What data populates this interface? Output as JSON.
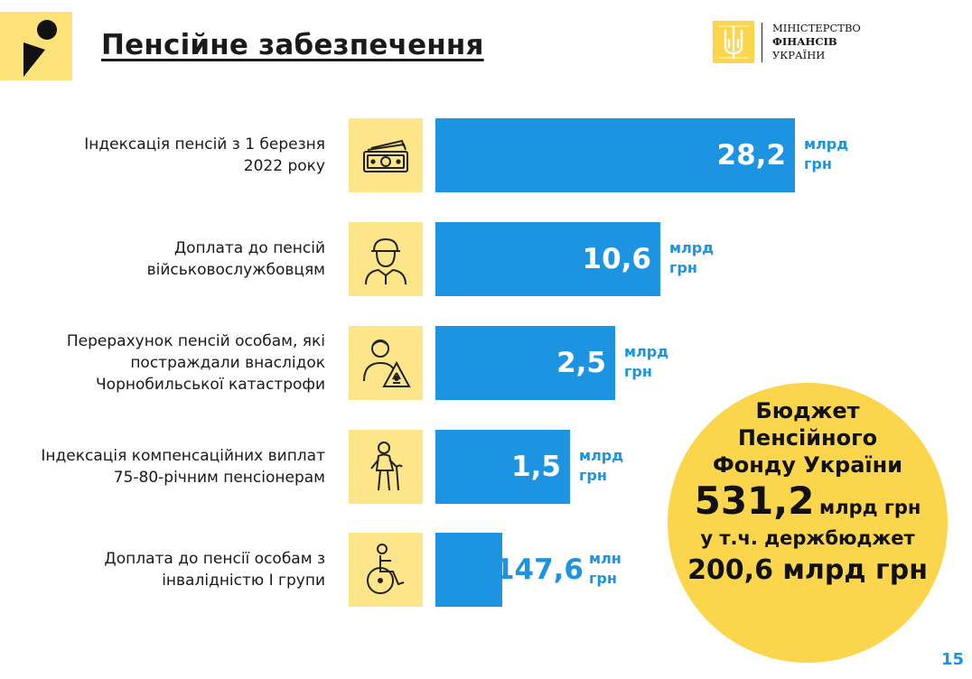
{
  "header": {
    "title": "Пенсійне забезпечення",
    "ministry_line1": "МІНІСТЕРСТВО",
    "ministry_line2": "ФІНАНСІВ",
    "ministry_line3": "УКРАЇНИ"
  },
  "chart_data": {
    "type": "bar",
    "orientation": "horizontal",
    "title": "",
    "categories": [
      "Індексація пенсій з 1 березня 2022 року",
      "Доплата до пенсій військовослужбовцям",
      "Перерахунок пенсій особам, які постраждали внаслідок Чорнобильської катастрофи",
      "Індексація компенсаційних виплат 75-80-річним пенсіонерам",
      "Доплата до пенсії особам з інвалідністю І групи"
    ],
    "items": [
      {
        "label_lines": [
          "Індексація пенсій з 1 березня",
          "2022 року"
        ],
        "value": 28.2,
        "value_label": "28,2",
        "unit_lines": [
          "млрд",
          "грн"
        ],
        "icon": "money-icon",
        "bar_fraction": 1.0
      },
      {
        "label_lines": [
          "Доплата до пенсій",
          "військовослужбовцям"
        ],
        "value": 10.6,
        "value_label": "10,6",
        "unit_lines": [
          "млрд",
          "грн"
        ],
        "icon": "soldier-icon",
        "bar_fraction": 0.625
      },
      {
        "label_lines": [
          "Перерахунок пенсій особам, які",
          "постраждали внаслідок",
          "Чорнобильської катастрофи"
        ],
        "value": 2.5,
        "value_label": "2,5",
        "unit_lines": [
          "млрд",
          "грн"
        ],
        "icon": "radiation-person-icon",
        "bar_fraction": 0.5
      },
      {
        "label_lines": [
          "Індексація компенсаційних виплат",
          "75-80-річним пенсіонерам"
        ],
        "value": 1.5,
        "value_label": "1,5",
        "unit_lines": [
          "млрд",
          "грн"
        ],
        "icon": "elderly-person-icon",
        "bar_fraction": 0.375
      },
      {
        "label_lines": [
          "Доплата до пенсії особам з",
          "інвалідністю І групи"
        ],
        "value": 147.6,
        "value_label": "147,6",
        "unit_lines": [
          "млн",
          "грн"
        ],
        "icon": "wheelchair-icon",
        "bar_fraction": 0.185
      }
    ],
    "colors": {
      "bar": "#1c94e2",
      "icon_bg": "#fde68a",
      "accent": "#fbd54b"
    }
  },
  "budget": {
    "line1": "Бюджет",
    "line2": "Пенсійного",
    "line3": "Фонду України",
    "amount": "531,2",
    "amount_unit": "млрд грн",
    "sub_label": "у т.ч. держбюджет",
    "sub_amount": "200,6 млрд грн"
  },
  "page_number": "15"
}
